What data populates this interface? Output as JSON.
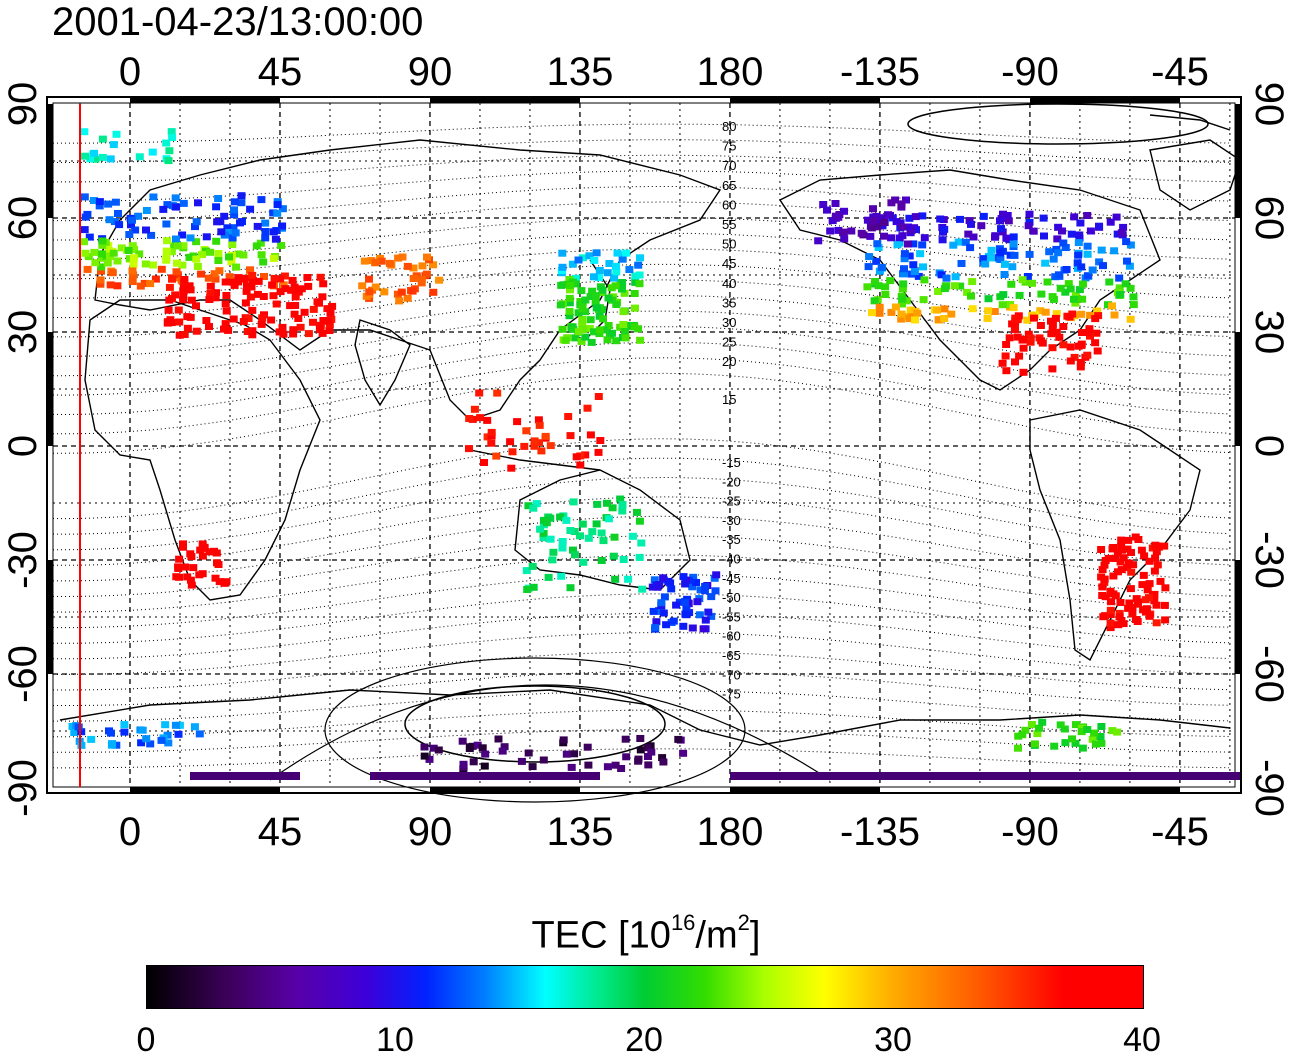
{
  "title": "2001-04-23/13:00:00",
  "map": {
    "x_ticks": [
      "0",
      "45",
      "90",
      "135",
      "180",
      "-135",
      "-90",
      "-45"
    ],
    "y_ticks": [
      "90",
      "60",
      "30",
      "0",
      "-30",
      "-60",
      "-90"
    ],
    "mag_labels_north": [
      "80",
      "75",
      "70",
      "65",
      "60",
      "55",
      "50",
      "45",
      "40",
      "35",
      "30",
      "25",
      "20",
      "15"
    ],
    "mag_labels_south": [
      "-15",
      "-20",
      "-25",
      "-30",
      "-35",
      "-40",
      "-45",
      "-50",
      "-55",
      "-60",
      "-65",
      "-70",
      "-75"
    ]
  },
  "colorbar": {
    "title_prefix": "TEC  [10",
    "title_exp1": "16",
    "title_mid": "/m",
    "title_exp2": "2",
    "title_suffix": "]",
    "ticks": [
      "0",
      "10",
      "20",
      "30",
      "40"
    ]
  },
  "colors": {
    "frame": "#000000",
    "marker_line": "#ff0000",
    "grid": "#000000"
  }
}
